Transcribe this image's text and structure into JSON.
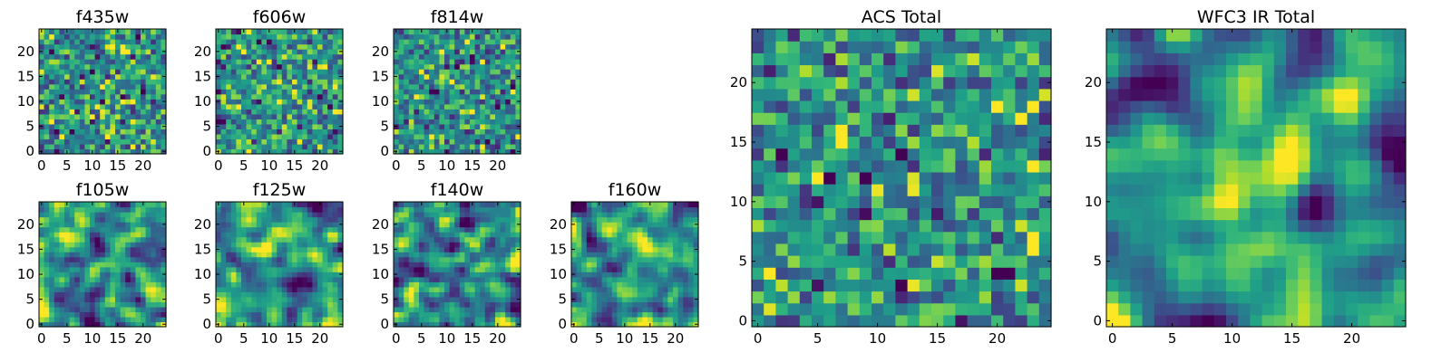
{
  "chart_data": [
    {
      "type": "heatmap",
      "title": "f435w",
      "colormap": "viridis",
      "xticks": [
        "0",
        "5",
        "10",
        "15",
        "20"
      ],
      "yticks": [
        "0",
        "5",
        "10",
        "15",
        "20"
      ],
      "xlim": [
        0,
        25
      ],
      "ylim": [
        0,
        25
      ],
      "grid_size": [
        25,
        25
      ],
      "seed": 11,
      "smooth": 0,
      "spots": []
    },
    {
      "type": "heatmap",
      "title": "f606w",
      "colormap": "viridis",
      "xticks": [
        "0",
        "5",
        "10",
        "15",
        "20"
      ],
      "yticks": [
        "0",
        "5",
        "10",
        "15",
        "20"
      ],
      "xlim": [
        0,
        25
      ],
      "ylim": [
        0,
        25
      ],
      "grid_size": [
        25,
        25
      ],
      "seed": 23,
      "smooth": 0,
      "spots": []
    },
    {
      "type": "heatmap",
      "title": "f814w",
      "colormap": "viridis",
      "xticks": [
        "0",
        "5",
        "10",
        "15",
        "20"
      ],
      "yticks": [
        "0",
        "5",
        "10",
        "15",
        "20"
      ],
      "xlim": [
        0,
        25
      ],
      "ylim": [
        0,
        25
      ],
      "grid_size": [
        25,
        25
      ],
      "seed": 37,
      "smooth": 0,
      "spots": []
    },
    {
      "type": "heatmap",
      "title": "f105w",
      "colormap": "viridis",
      "xticks": [
        "0",
        "5",
        "10",
        "15",
        "20"
      ],
      "yticks": [
        "0",
        "5",
        "10",
        "15",
        "20"
      ],
      "xlim": [
        0,
        25
      ],
      "ylim": [
        0,
        25
      ],
      "grid_size": [
        25,
        25
      ],
      "seed": 41,
      "smooth": 1,
      "spots": []
    },
    {
      "type": "heatmap",
      "title": "f125w",
      "colormap": "viridis",
      "xticks": [
        "0",
        "5",
        "10",
        "15",
        "20"
      ],
      "yticks": [
        "0",
        "5",
        "10",
        "15",
        "20"
      ],
      "xlim": [
        0,
        25
      ],
      "ylim": [
        0,
        25
      ],
      "grid_size": [
        25,
        25
      ],
      "seed": 53,
      "smooth": 1,
      "spots": []
    },
    {
      "type": "heatmap",
      "title": "f140w",
      "colormap": "viridis",
      "xticks": [
        "0",
        "5",
        "10",
        "15",
        "20"
      ],
      "yticks": [
        "0",
        "5",
        "10",
        "15",
        "20"
      ],
      "xlim": [
        0,
        25
      ],
      "ylim": [
        0,
        25
      ],
      "grid_size": [
        25,
        25
      ],
      "seed": 67,
      "smooth": 1,
      "spots": []
    },
    {
      "type": "heatmap",
      "title": "f160w",
      "colormap": "viridis",
      "xticks": [
        "0",
        "5",
        "10",
        "15",
        "20"
      ],
      "yticks": [
        "0",
        "5",
        "10",
        "15",
        "20"
      ],
      "xlim": [
        0,
        25
      ],
      "ylim": [
        0,
        25
      ],
      "grid_size": [
        25,
        25
      ],
      "seed": 79,
      "smooth": 1,
      "spots": [
        [
          13,
          15,
          1.0,
          2.5
        ]
      ]
    },
    {
      "type": "heatmap",
      "title": "ACS Total",
      "colormap": "viridis",
      "xticks": [
        "0",
        "5",
        "10",
        "15",
        "20"
      ],
      "yticks": [
        "0",
        "5",
        "10",
        "15",
        "20"
      ],
      "xlim": [
        0,
        25
      ],
      "ylim": [
        0,
        25
      ],
      "grid_size": [
        25,
        25
      ],
      "seed": 97,
      "smooth": 0.35,
      "spots": []
    },
    {
      "type": "heatmap",
      "title": "WFC3 IR Total",
      "colormap": "viridis",
      "xticks": [
        "0",
        "5",
        "10",
        "15",
        "20"
      ],
      "yticks": [
        "0",
        "5",
        "10",
        "15",
        "20"
      ],
      "xlim": [
        0,
        25
      ],
      "ylim": [
        0,
        25
      ],
      "grid_size": [
        25,
        25
      ],
      "seed": 131,
      "smooth": 1.2,
      "spots": [
        [
          13,
          12,
          1.2,
          2.2
        ],
        [
          15,
          15,
          0.5,
          1.5
        ],
        [
          11,
          17,
          0.3,
          1.5
        ]
      ]
    }
  ]
}
